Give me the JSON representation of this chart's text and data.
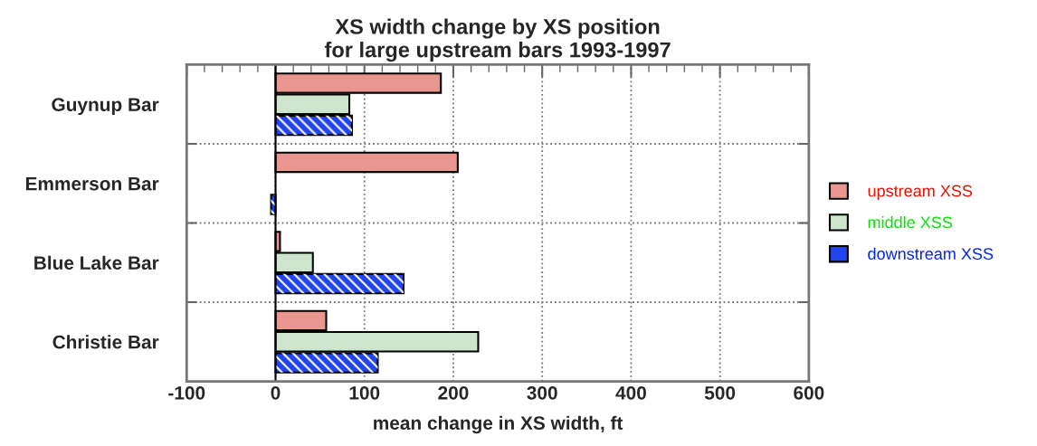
{
  "chart_data": {
    "type": "bar",
    "orientation": "horizontal",
    "title": "XS width change by XS position\nfor large upstream bars 1993-1997",
    "xlabel": "mean change in XS width, ft",
    "categories": [
      "Guynup Bar",
      "Emmerson Bar",
      "Blue Lake Bar",
      "Christie Bar"
    ],
    "series": [
      {
        "name": "upstream XSS",
        "color": "#e8968f",
        "values": [
          186,
          205,
          5,
          57
        ]
      },
      {
        "name": "middle XSS",
        "color": "#cce5cc",
        "values": [
          83,
          null,
          42,
          228
        ]
      },
      {
        "name": "downstream XSS",
        "color": "#2244ee",
        "values": [
          86,
          -5,
          144,
          115
        ]
      }
    ],
    "xlim": [
      -100,
      600
    ],
    "xticks": [
      -100,
      0,
      100,
      200,
      300,
      400,
      500,
      600
    ],
    "grid": true,
    "legend": "right"
  }
}
